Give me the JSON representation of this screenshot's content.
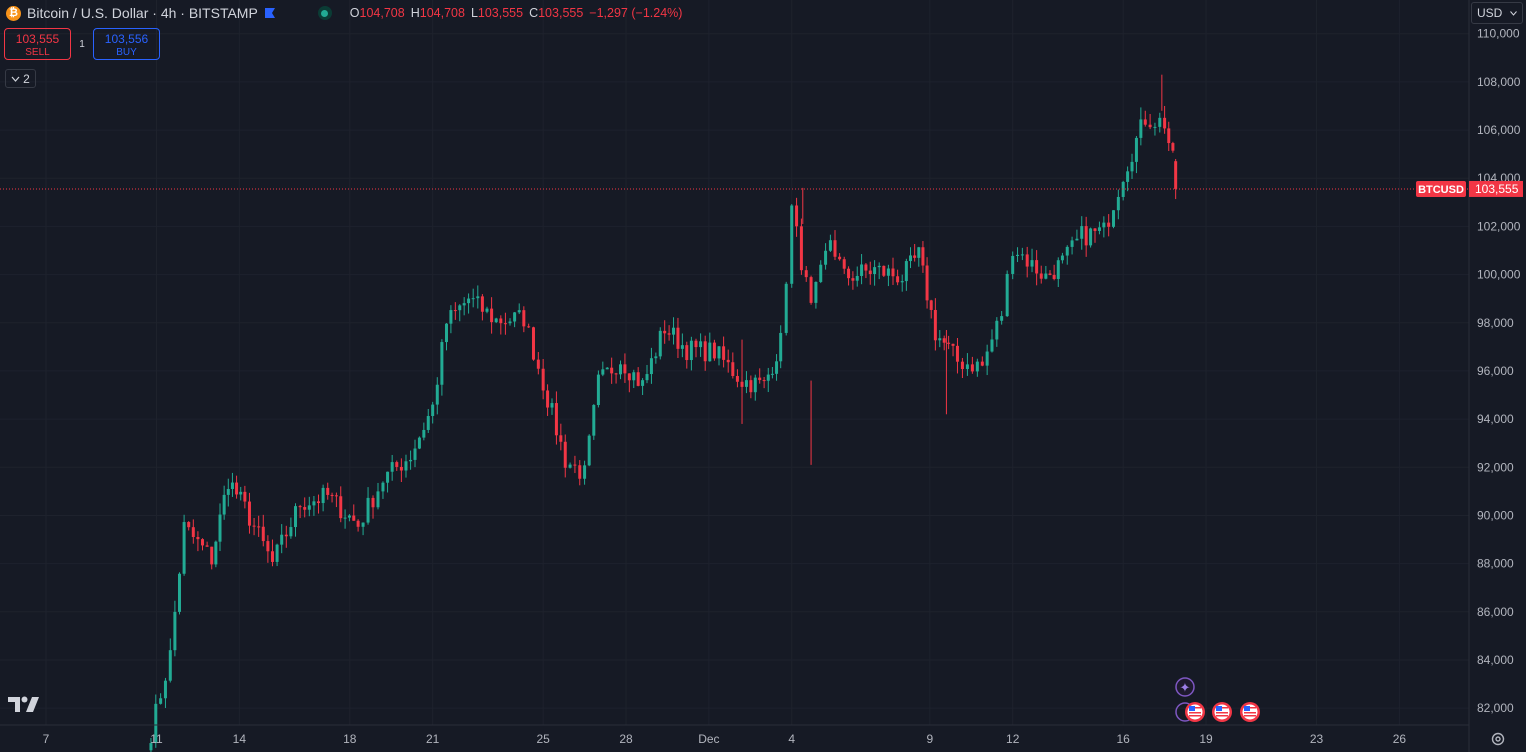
{
  "header": {
    "symbol_title": "Bitcoin / U.S. Dollar · 4h · BITSTAMP",
    "ohlc": {
      "o_label": "O",
      "o_value": "104,708",
      "h_label": "H",
      "h_value": "104,708",
      "l_label": "L",
      "l_value": "103,555",
      "c_label": "C",
      "c_value": "103,555",
      "change": "−1,297 (−1.24%)"
    }
  },
  "trade": {
    "sell_price": "103,555",
    "sell_label": "SELL",
    "spread": "1",
    "buy_price": "103,556",
    "buy_label": "BUY"
  },
  "collapse_count": "2",
  "currency": "USD",
  "icons": [
    "bitcoin-icon",
    "flag-icon",
    "live-status-icon",
    "chevron-down-icon",
    "tradingview-logo-icon",
    "settings-icon",
    "event-icon",
    "us-flag-icon"
  ],
  "colors": {
    "up": "#22ab94",
    "down": "#f23645",
    "background": "#161a25",
    "accent": "#2962ff"
  },
  "chart_data": {
    "type": "candlestick",
    "timeframe": "4h",
    "price_label": {
      "symbol": "BTCUSD",
      "value": "103,555",
      "price": 103555
    },
    "ylim": [
      81300,
      111400
    ],
    "y_ticks": [
      82000,
      84000,
      86000,
      88000,
      90000,
      92000,
      94000,
      96000,
      98000,
      100000,
      102000,
      104000,
      106000,
      108000,
      110000
    ],
    "y_tick_labels": [
      "82,000",
      "84,000",
      "86,000",
      "88,000",
      "90,000",
      "92,000",
      "94,000",
      "96,000",
      "98,000",
      "100,000",
      "102,000",
      "104,000",
      "106,000",
      "108,000",
      "110,000"
    ],
    "x_ticks": [
      {
        "label": "7",
        "day": 7
      },
      {
        "label": "11",
        "day": 11
      },
      {
        "label": "14",
        "day": 14
      },
      {
        "label": "18",
        "day": 18
      },
      {
        "label": "21",
        "day": 21
      },
      {
        "label": "25",
        "day": 25
      },
      {
        "label": "28",
        "day": 28
      },
      {
        "label": "Dec",
        "day": 31
      },
      {
        "label": "4",
        "day": 34
      },
      {
        "label": "9",
        "day": 39
      },
      {
        "label": "12",
        "day": 42
      },
      {
        "label": "16",
        "day": 46
      },
      {
        "label": "19",
        "day": 49
      },
      {
        "label": "23",
        "day": 53
      },
      {
        "label": "26",
        "day": 56
      }
    ],
    "x_unit": "days since Nov 1",
    "candle_anchors": [
      {
        "day": 10.8,
        "price": 81000
      },
      {
        "day": 11.5,
        "price": 84200
      },
      {
        "day": 12.0,
        "price": 89500
      },
      {
        "day": 13.0,
        "price": 88200
      },
      {
        "day": 13.6,
        "price": 91500
      },
      {
        "day": 14.2,
        "price": 90300
      },
      {
        "day": 15.2,
        "price": 88000
      },
      {
        "day": 16.2,
        "price": 90500
      },
      {
        "day": 17.2,
        "price": 90800
      },
      {
        "day": 18.3,
        "price": 89600
      },
      {
        "day": 19.2,
        "price": 91500
      },
      {
        "day": 20.2,
        "price": 92500
      },
      {
        "day": 21.0,
        "price": 94500
      },
      {
        "day": 21.5,
        "price": 98000
      },
      {
        "day": 22.3,
        "price": 99000
      },
      {
        "day": 23.3,
        "price": 98100
      },
      {
        "day": 24.3,
        "price": 98200
      },
      {
        "day": 25.0,
        "price": 95500
      },
      {
        "day": 25.8,
        "price": 92300
      },
      {
        "day": 26.5,
        "price": 91700
      },
      {
        "day": 27.0,
        "price": 95500
      },
      {
        "day": 27.8,
        "price": 96500
      },
      {
        "day": 28.6,
        "price": 95400
      },
      {
        "day": 29.4,
        "price": 97800
      },
      {
        "day": 30.2,
        "price": 96900
      },
      {
        "day": 31.2,
        "price": 96800
      },
      {
        "day": 32.2,
        "price": 95600
      },
      {
        "day": 33.0,
        "price": 95400
      },
      {
        "day": 33.6,
        "price": 97200
      },
      {
        "day": 34.0,
        "price": 102700
      },
      {
        "day": 34.7,
        "price": 98500
      },
      {
        "day": 35.4,
        "price": 101500
      },
      {
        "day": 35.9,
        "price": 99900
      },
      {
        "day": 37.0,
        "price": 100200
      },
      {
        "day": 38.0,
        "price": 99900
      },
      {
        "day": 38.6,
        "price": 100800
      },
      {
        "day": 39.2,
        "price": 97600
      },
      {
        "day": 40.0,
        "price": 96400
      },
      {
        "day": 40.9,
        "price": 96200
      },
      {
        "day": 41.6,
        "price": 98400
      },
      {
        "day": 42.0,
        "price": 101200
      },
      {
        "day": 42.7,
        "price": 100400
      },
      {
        "day": 43.2,
        "price": 99900
      },
      {
        "day": 43.8,
        "price": 100500
      },
      {
        "day": 44.5,
        "price": 101600
      },
      {
        "day": 45.3,
        "price": 101800
      },
      {
        "day": 46.0,
        "price": 104200
      },
      {
        "day": 46.8,
        "price": 106500
      },
      {
        "day": 47.5,
        "price": 106300
      },
      {
        "day": 47.8,
        "price": 104700
      },
      {
        "day": 47.9,
        "price": 103555
      }
    ],
    "low_wick_markers": [
      {
        "day": 34.7,
        "price": 92100
      },
      {
        "day": 32.2,
        "price": 93800
      },
      {
        "day": 39.6,
        "price": 94200
      }
    ],
    "high_wick_markers": [
      {
        "day": 47.4,
        "price": 108300
      },
      {
        "day": 34.4,
        "price": 103600
      }
    ]
  }
}
